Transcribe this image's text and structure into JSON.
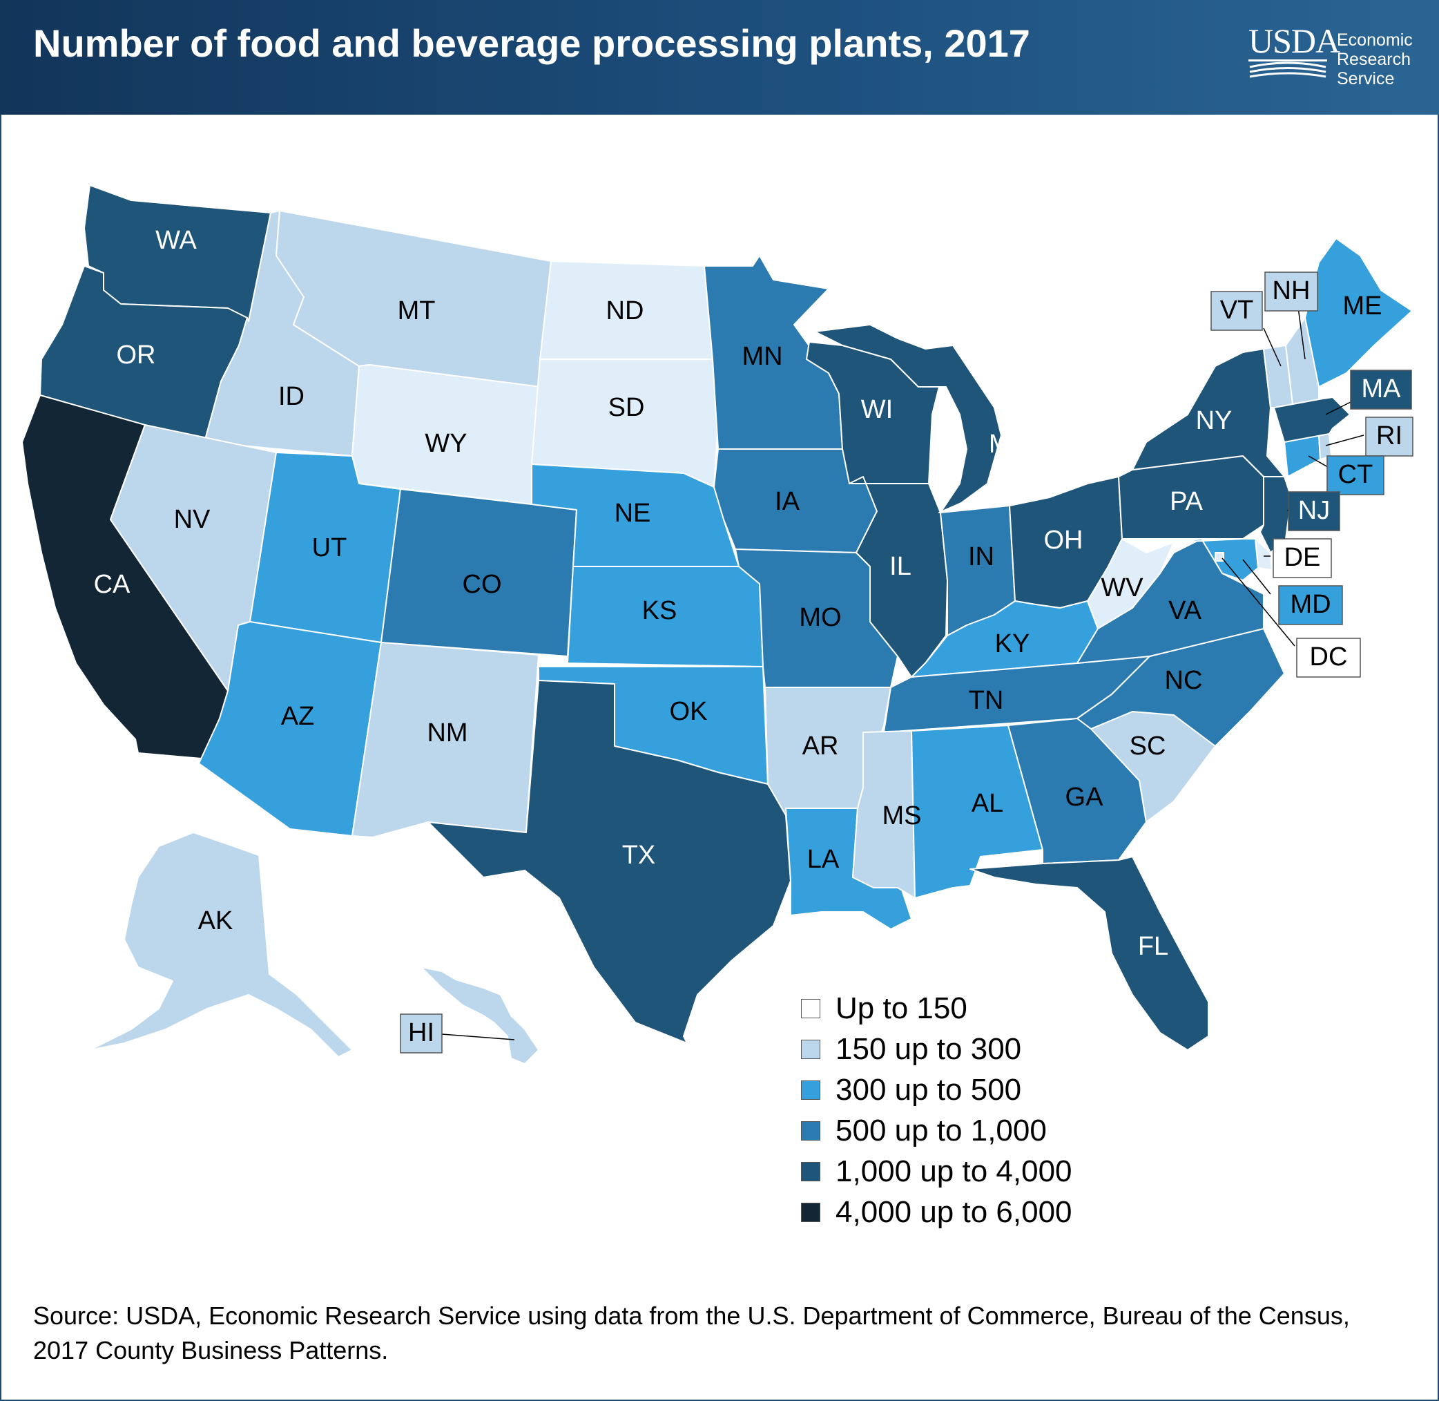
{
  "header": {
    "title": "Number of food and beverage processing plants, 2017",
    "logo_text": "USDA",
    "agency_lines": [
      "Economic",
      "Research",
      "Service"
    ]
  },
  "colors": {
    "header_bg": "#1d4f7d",
    "c1": "#e0eef9",
    "c2": "#bcd7ec",
    "c3": "#35a0dc",
    "c4": "#2b7bb0",
    "c5": "#1e5578",
    "c6": "#122635"
  },
  "legend": {
    "items": [
      {
        "label": "Up to 150",
        "color": "#ffffff"
      },
      {
        "label": "150 up to 300",
        "color": "#bcd7ec"
      },
      {
        "label": "300 up to 500",
        "color": "#35a0dc"
      },
      {
        "label": "500 up to 1,000",
        "color": "#2b7bb0"
      },
      {
        "label": "1,000 up to 4,000",
        "color": "#1e5578"
      },
      {
        "label": "4,000 up to 6,000",
        "color": "#122635"
      }
    ]
  },
  "states": [
    {
      "abbr": "WA",
      "class": 5
    },
    {
      "abbr": "OR",
      "class": 5
    },
    {
      "abbr": "CA",
      "class": 6
    },
    {
      "abbr": "ID",
      "class": 2
    },
    {
      "abbr": "NV",
      "class": 2
    },
    {
      "abbr": "MT",
      "class": 2
    },
    {
      "abbr": "WY",
      "class": 1
    },
    {
      "abbr": "UT",
      "class": 3
    },
    {
      "abbr": "AZ",
      "class": 3
    },
    {
      "abbr": "CO",
      "class": 4
    },
    {
      "abbr": "NM",
      "class": 2
    },
    {
      "abbr": "ND",
      "class": 1
    },
    {
      "abbr": "SD",
      "class": 1
    },
    {
      "abbr": "NE",
      "class": 3
    },
    {
      "abbr": "KS",
      "class": 3
    },
    {
      "abbr": "OK",
      "class": 3
    },
    {
      "abbr": "TX",
      "class": 5
    },
    {
      "abbr": "MN",
      "class": 4
    },
    {
      "abbr": "IA",
      "class": 4
    },
    {
      "abbr": "MO",
      "class": 4
    },
    {
      "abbr": "AR",
      "class": 2
    },
    {
      "abbr": "LA",
      "class": 3
    },
    {
      "abbr": "WI",
      "class": 5
    },
    {
      "abbr": "IL",
      "class": 5
    },
    {
      "abbr": "MI",
      "class": 5
    },
    {
      "abbr": "IN",
      "class": 4
    },
    {
      "abbr": "OH",
      "class": 5
    },
    {
      "abbr": "KY",
      "class": 3
    },
    {
      "abbr": "TN",
      "class": 4
    },
    {
      "abbr": "MS",
      "class": 2
    },
    {
      "abbr": "AL",
      "class": 3
    },
    {
      "abbr": "GA",
      "class": 4
    },
    {
      "abbr": "FL",
      "class": 5
    },
    {
      "abbr": "SC",
      "class": 2
    },
    {
      "abbr": "NC",
      "class": 4
    },
    {
      "abbr": "VA",
      "class": 4
    },
    {
      "abbr": "WV",
      "class": 1
    },
    {
      "abbr": "PA",
      "class": 5
    },
    {
      "abbr": "NY",
      "class": 5
    },
    {
      "abbr": "ME",
      "class": 3
    },
    {
      "abbr": "VT",
      "class": 2
    },
    {
      "abbr": "NH",
      "class": 2
    },
    {
      "abbr": "MA",
      "class": 5
    },
    {
      "abbr": "RI",
      "class": 2
    },
    {
      "abbr": "CT",
      "class": 3
    },
    {
      "abbr": "NJ",
      "class": 5
    },
    {
      "abbr": "DE",
      "class": 1
    },
    {
      "abbr": "MD",
      "class": 3
    },
    {
      "abbr": "DC",
      "class": 1
    },
    {
      "abbr": "AK",
      "class": 2
    },
    {
      "abbr": "HI",
      "class": 2
    }
  ],
  "source": "Source: USDA, Economic Research Service using data from the U.S. Department of Commerce, Bureau of the Census, 2017 County Business Patterns."
}
